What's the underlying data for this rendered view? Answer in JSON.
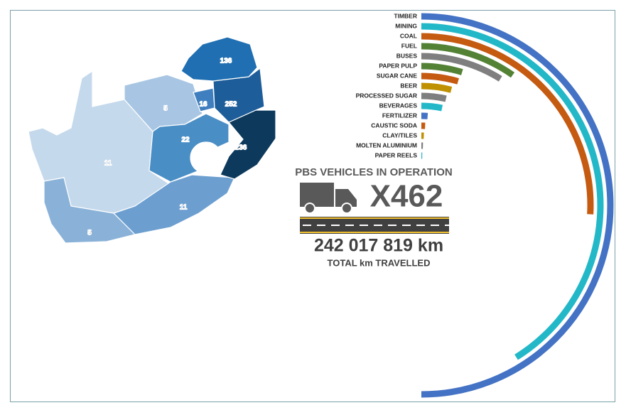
{
  "map": {
    "regions": [
      {
        "label": 136,
        "color": "#1f6fb2"
      },
      {
        "label": 16,
        "color": "#3f7fbf"
      },
      {
        "label": 252,
        "color": "#1d5d99"
      },
      {
        "label": 5,
        "color": "#a8c6e3"
      },
      {
        "label": 22,
        "color": "#4a8ec6"
      },
      {
        "label": 236,
        "color": "#0d3a5c"
      },
      {
        "label": 11,
        "color": "#c5d9ec"
      },
      {
        "label": 11,
        "color": "#6c9fd0"
      },
      {
        "label": 5,
        "color": "#8ab2d8"
      }
    ]
  },
  "summary": {
    "heading": "PBS VEHICLES IN OPERATION",
    "count": "X462",
    "distance": "242 017 819 km",
    "caption": "TOTAL km TRAVELLED"
  },
  "chart_data": {
    "type": "radial_bar",
    "categories": [
      "TIMBER",
      "MINING",
      "COAL",
      "FUEL",
      "BUSES",
      "PAPER PULP",
      "SUGAR CANE",
      "BEER",
      "PROCESSED SUGAR",
      "BEVERAGES",
      "FERTILIZER",
      "CAUSTIC SODA",
      "CLAY/TILES",
      "MOLTEN ALUMINIUM",
      "PAPER REELS"
    ],
    "values": [
      180,
      148,
      93,
      35,
      32,
      17,
      16.5,
      14.5,
      13,
      12,
      4,
      2.7,
      2,
      1.5,
      1
    ],
    "colors": [
      "#4472c4",
      "#22b8c8",
      "#c55a11",
      "#548235",
      "#7f7f7f",
      "#548235",
      "#c55a11",
      "#bf9000",
      "#7f7f7f",
      "#22b8c8",
      "#4472c4",
      "#c55a11",
      "#bf9000",
      "#7f7f7f",
      "#22b8c8"
    ]
  }
}
